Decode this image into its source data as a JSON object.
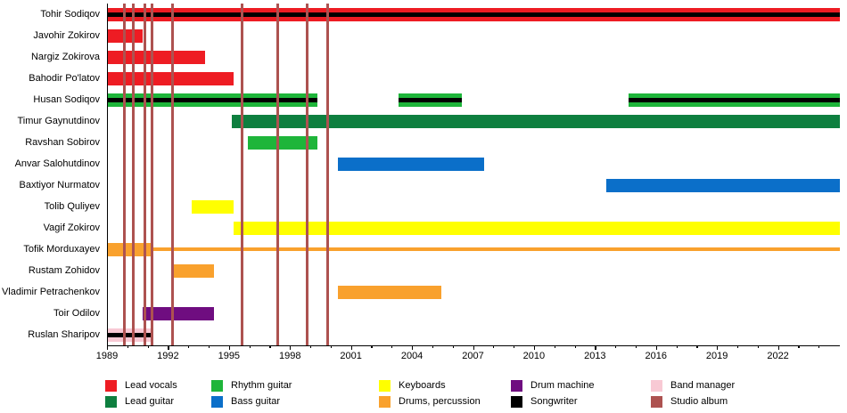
{
  "chart_data": {
    "type": "bar",
    "subtype": "band-members-timeline-gantt",
    "x_axis": {
      "min": 1989,
      "max": 2025,
      "major_ticks": [
        1989,
        1992,
        1995,
        1998,
        2001,
        2004,
        2007,
        2010,
        2013,
        2016,
        2019,
        2022
      ],
      "minor_tick_interval": 1,
      "grid": false
    },
    "members": [
      {
        "name": "Tohir Sodiqov",
        "segments": [
          {
            "role": "lead_vocals",
            "start": 1989,
            "end": 2025,
            "songwriter": true
          }
        ]
      },
      {
        "name": "Javohir Zokirov",
        "segments": [
          {
            "role": "lead_vocals",
            "start": 1989,
            "end": 1990.7
          }
        ]
      },
      {
        "name": "Nargiz Zokirova",
        "segments": [
          {
            "role": "lead_vocals",
            "start": 1989,
            "end": 1993.8
          }
        ]
      },
      {
        "name": "Bahodir Po'latov",
        "segments": [
          {
            "role": "lead_vocals",
            "start": 1989,
            "end": 1995.2
          }
        ]
      },
      {
        "name": "Husan Sodiqov",
        "segments": [
          {
            "role": "rhythm_guitar",
            "start": 1989,
            "end": 1999.3,
            "songwriter": true
          },
          {
            "role": "rhythm_guitar",
            "start": 2003.3,
            "end": 2006.4,
            "songwriter": true
          },
          {
            "role": "rhythm_guitar",
            "start": 2014.6,
            "end": 2025,
            "songwriter": true
          }
        ]
      },
      {
        "name": "Timur Gaynutdinov",
        "segments": [
          {
            "role": "lead_guitar",
            "start": 1995.1,
            "end": 2025
          }
        ]
      },
      {
        "name": "Ravshan Sobirov",
        "segments": [
          {
            "role": "rhythm_guitar",
            "start": 1995.9,
            "end": 1999.3
          }
        ]
      },
      {
        "name": "Anvar Salohutdinov",
        "segments": [
          {
            "role": "bass_guitar",
            "start": 2000.3,
            "end": 2007.5
          }
        ]
      },
      {
        "name": "Baxtiyor Nurmatov",
        "segments": [
          {
            "role": "bass_guitar",
            "start": 2013.5,
            "end": 2025
          }
        ]
      },
      {
        "name": "Tolib Quliyev",
        "segments": [
          {
            "role": "keyboards",
            "start": 1993.1,
            "end": 1995.2
          }
        ]
      },
      {
        "name": "Vagif Zokirov",
        "segments": [
          {
            "role": "keyboards",
            "start": 1995.2,
            "end": 2025
          }
        ]
      },
      {
        "name": "Tofik Morduxayev",
        "segments": [
          {
            "role": "drums_percussion",
            "start": 1989,
            "end": 1991.1
          },
          {
            "role": "drums_percussion",
            "start": 1991.1,
            "end": 2025,
            "thin": true
          }
        ]
      },
      {
        "name": "Rustam Zohidov",
        "segments": [
          {
            "role": "drums_percussion",
            "start": 1992.1,
            "end": 1994.2
          }
        ]
      },
      {
        "name": "Vladimir Petrachenkov",
        "segments": [
          {
            "role": "drums_percussion",
            "start": 2000.3,
            "end": 2005.4
          }
        ]
      },
      {
        "name": "Toir Odilov",
        "segments": [
          {
            "role": "drum_machine",
            "start": 1990.7,
            "end": 1994.2
          }
        ]
      },
      {
        "name": "Ruslan Sharipov",
        "segments": [
          {
            "role": "band_manager",
            "start": 1989,
            "end": 1991.1,
            "songwriter": true
          }
        ]
      }
    ],
    "albums": [
      1989.8,
      1990.25,
      1990.8,
      1991.15,
      1992.2,
      1995.6,
      1997.35,
      1998.8,
      1999.8
    ]
  },
  "colors": {
    "lead_vocals": "#ee1c23",
    "lead_guitar": "#0e7f3f",
    "rhythm_guitar": "#1eb53a",
    "bass_guitar": "#0b6fc9",
    "keyboards": "#ffff00",
    "drums_percussion": "#f9a12d",
    "drum_machine": "#6f0d80",
    "songwriter": "#000000",
    "band_manager": "#f8c9d4",
    "studio_album": "#ad5250"
  },
  "legend": {
    "items": [
      {
        "label": "Lead vocals",
        "role": "lead_vocals"
      },
      {
        "label": "Lead guitar",
        "role": "lead_guitar"
      },
      {
        "label": "Rhythm guitar",
        "role": "rhythm_guitar"
      },
      {
        "label": "Bass guitar",
        "role": "bass_guitar"
      },
      {
        "label": "Keyboards",
        "role": "keyboards"
      },
      {
        "label": "Drums, percussion",
        "role": "drums_percussion"
      },
      {
        "label": "Drum machine",
        "role": "drum_machine"
      },
      {
        "label": "Songwriter",
        "role": "songwriter"
      },
      {
        "label": "Band manager",
        "role": "band_manager"
      },
      {
        "label": "Studio album",
        "role": "studio_album"
      }
    ]
  }
}
